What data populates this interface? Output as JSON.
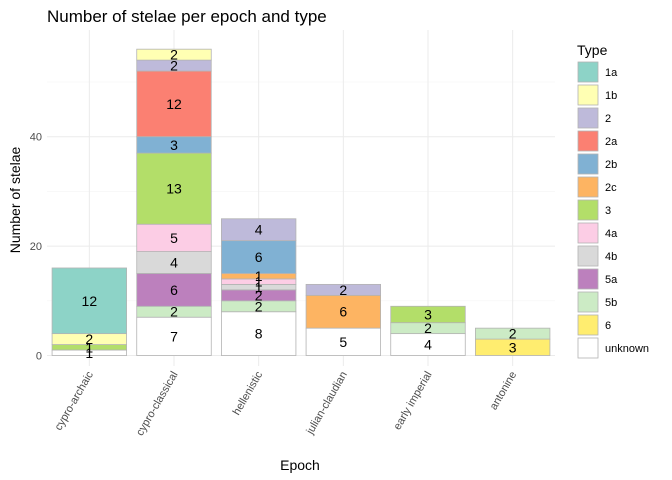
{
  "chart_data": {
    "type": "bar",
    "stacked": true,
    "title": "Number of stelae per epoch and type",
    "xlabel": "Epoch",
    "ylabel": "Number of stelae",
    "ylim": [
      0,
      58
    ],
    "yticks": [
      0,
      20,
      40
    ],
    "grid": true,
    "legend_title": "Type",
    "legend_position": "right",
    "categories": [
      "cypro-archaic",
      "cypro-classical",
      "hellenistic",
      "julian-claudian",
      "early imperial",
      "antonine"
    ],
    "series": [
      {
        "name": "1a",
        "color": "#8DD3C7",
        "values": [
          12,
          0,
          0,
          0,
          0,
          0
        ]
      },
      {
        "name": "1b",
        "color": "#FFFFB3",
        "values": [
          2,
          2,
          0,
          0,
          0,
          0
        ]
      },
      {
        "name": "2",
        "color": "#BEBADA",
        "values": [
          0,
          2,
          4,
          2,
          0,
          0
        ]
      },
      {
        "name": "2a",
        "color": "#FB8072",
        "values": [
          0,
          12,
          0,
          0,
          0,
          0
        ]
      },
      {
        "name": "2b",
        "color": "#80B1D3",
        "values": [
          0,
          3,
          6,
          0,
          0,
          0
        ]
      },
      {
        "name": "2c",
        "color": "#FDB462",
        "values": [
          0,
          0,
          1,
          6,
          0,
          0
        ]
      },
      {
        "name": "3",
        "color": "#B3DE69",
        "values": [
          1,
          13,
          0,
          0,
          3,
          0
        ]
      },
      {
        "name": "4a",
        "color": "#FCCDE5",
        "values": [
          0,
          5,
          1,
          0,
          0,
          0
        ]
      },
      {
        "name": "4b",
        "color": "#D9D9D9",
        "values": [
          0,
          4,
          1,
          0,
          0,
          0
        ]
      },
      {
        "name": "5a",
        "color": "#BC80BD",
        "values": [
          0,
          6,
          2,
          0,
          0,
          0
        ]
      },
      {
        "name": "5b",
        "color": "#CCEBC5",
        "values": [
          0,
          2,
          2,
          0,
          2,
          2
        ]
      },
      {
        "name": "6",
        "color": "#FFED6F",
        "values": [
          0,
          0,
          0,
          0,
          0,
          3
        ]
      },
      {
        "name": "unknown",
        "color": "#FFFFFF",
        "values": [
          1,
          7,
          8,
          5,
          4,
          0
        ]
      }
    ]
  }
}
